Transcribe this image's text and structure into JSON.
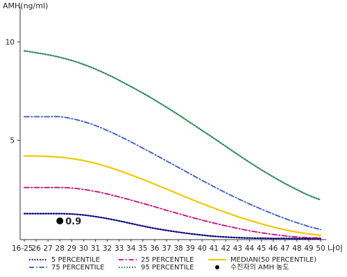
{
  "chart_data": {
    "type": "line",
    "ylabel": "AMH(ng/ml)",
    "xlabel": "나이",
    "ylim": [
      -0.05,
      11.5
    ],
    "yticks": [
      5,
      10
    ],
    "x": [
      "16-25",
      "26",
      "27",
      "28",
      "29",
      "30",
      "31",
      "32",
      "33",
      "34",
      "35",
      "36",
      "37",
      "38",
      "39",
      "40",
      "41",
      "42",
      "43",
      "44",
      "45",
      "46",
      "47",
      "48",
      "49",
      "50"
    ],
    "grid": false,
    "legend_position": "bottom",
    "series": [
      {
        "name": "5 PERCENTILE",
        "color": "#000080",
        "dash": "dotted",
        "values": [
          1.27,
          1.27,
          1.27,
          1.27,
          1.25,
          1.2,
          1.12,
          1.02,
          0.9,
          0.77,
          0.64,
          0.52,
          0.42,
          0.33,
          0.25,
          0.18,
          0.12,
          0.08,
          0.05,
          0.03,
          0.02,
          0.01,
          0.01,
          0.0,
          0.0,
          0.0
        ]
      },
      {
        "name": "25 PERCENTILE",
        "color": "#cc0077",
        "dash": "dash-dot",
        "values": [
          2.6,
          2.6,
          2.6,
          2.6,
          2.57,
          2.5,
          2.4,
          2.27,
          2.12,
          1.96,
          1.79,
          1.62,
          1.44,
          1.27,
          1.1,
          0.94,
          0.79,
          0.65,
          0.52,
          0.4,
          0.3,
          0.21,
          0.14,
          0.08,
          0.05,
          0.03
        ]
      },
      {
        "name": "75 PERCENTILE",
        "color": "#3355cc",
        "dash": "dash-dot",
        "values": [
          6.2,
          6.2,
          6.2,
          6.2,
          6.1,
          5.95,
          5.75,
          5.5,
          5.22,
          4.92,
          4.6,
          4.28,
          3.95,
          3.62,
          3.29,
          2.96,
          2.64,
          2.33,
          2.04,
          1.76,
          1.5,
          1.25,
          1.02,
          0.81,
          0.62,
          0.46
        ]
      },
      {
        "name": "95 PERCENTILE",
        "color": "#2e8b57",
        "dash": "dotted",
        "values": [
          9.55,
          9.45,
          9.35,
          9.22,
          9.06,
          8.86,
          8.62,
          8.35,
          8.05,
          7.73,
          7.4,
          7.05,
          6.68,
          6.3,
          5.9,
          5.5,
          5.1,
          4.69,
          4.28,
          3.88,
          3.5,
          3.14,
          2.8,
          2.49,
          2.2,
          1.97
        ]
      },
      {
        "name": "MEDIAN(50 PERCENTILE)",
        "color": "#f2c800",
        "dash": "solid",
        "values": [
          4.2,
          4.2,
          4.18,
          4.14,
          4.07,
          3.97,
          3.83,
          3.66,
          3.46,
          3.24,
          3.01,
          2.77,
          2.52,
          2.27,
          2.02,
          1.78,
          1.55,
          1.33,
          1.12,
          0.93,
          0.75,
          0.59,
          0.45,
          0.33,
          0.24,
          0.17
        ]
      }
    ],
    "patient_point": {
      "name": "수진자의 AMH 농도",
      "x": "28",
      "y": 0.9,
      "label": "0.9",
      "color": "#000000"
    }
  }
}
